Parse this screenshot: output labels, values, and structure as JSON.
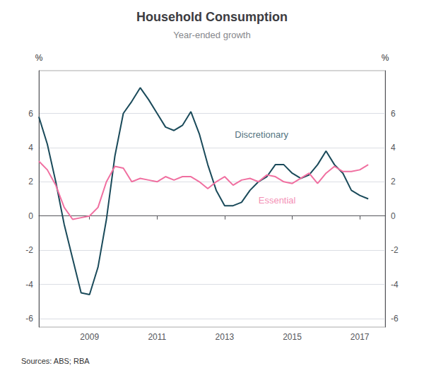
{
  "chart_data": {
    "type": "line",
    "title": "Household Consumption",
    "subtitle": "Year-ended growth",
    "y_label": "%",
    "y2_label": "%",
    "source": "Sources: ABS; RBA",
    "x": [
      2007.5,
      2007.75,
      2008.0,
      2008.25,
      2008.5,
      2008.75,
      2009.0,
      2009.25,
      2009.5,
      2009.75,
      2010.0,
      2010.25,
      2010.5,
      2010.75,
      2011.0,
      2011.25,
      2011.5,
      2011.75,
      2012.0,
      2012.25,
      2012.5,
      2012.75,
      2013.0,
      2013.25,
      2013.5,
      2013.75,
      2014.0,
      2014.25,
      2014.5,
      2014.75,
      2015.0,
      2015.25,
      2015.5,
      2015.75,
      2016.0,
      2016.25,
      2016.5,
      2016.75,
      2017.0,
      2017.25
    ],
    "series": [
      {
        "name": "Discretionary",
        "color": "#1a4a5a",
        "values": [
          5.8,
          4.2,
          2.0,
          -0.5,
          -2.5,
          -4.5,
          -4.6,
          -3.0,
          -0.2,
          3.5,
          6.0,
          6.7,
          7.5,
          6.8,
          6.0,
          5.2,
          5.0,
          5.3,
          6.1,
          4.8,
          3.0,
          1.5,
          0.6,
          0.6,
          0.8,
          1.5,
          2.0,
          2.3,
          3.0,
          3.0,
          2.5,
          2.2,
          2.4,
          3.0,
          3.8,
          3.0,
          2.5,
          1.5,
          1.2,
          1.0
        ]
      },
      {
        "name": "Essential",
        "color": "#f06fa0",
        "values": [
          3.2,
          2.7,
          1.8,
          0.5,
          -0.2,
          -0.1,
          0.0,
          0.5,
          2.0,
          2.9,
          2.8,
          2.0,
          2.2,
          2.1,
          2.0,
          2.3,
          2.1,
          2.3,
          2.3,
          2.0,
          1.6,
          2.0,
          2.3,
          1.8,
          2.1,
          2.2,
          2.0,
          2.4,
          2.3,
          2.0,
          1.9,
          2.2,
          2.5,
          1.9,
          2.5,
          2.9,
          2.6,
          2.6,
          2.7,
          3.0
        ]
      }
    ],
    "annotations": [
      {
        "text": "Discretionary",
        "x": 2013.3,
        "y": 4.5
      },
      {
        "text": "Essential",
        "x": 2014.0,
        "y": 1.2
      }
    ],
    "xlim": [
      2007.5,
      2017.75
    ],
    "xticks": [
      2009,
      2011,
      2013,
      2015,
      2017
    ],
    "ylim": [
      -6.5,
      8.5
    ],
    "yticks": [
      -6,
      -4,
      -2,
      0,
      2,
      4,
      6
    ],
    "y2lim": [
      -6.5,
      8.5
    ],
    "y2ticks": [
      -6,
      -4,
      -2,
      0,
      2,
      4,
      6
    ],
    "grid": true
  }
}
